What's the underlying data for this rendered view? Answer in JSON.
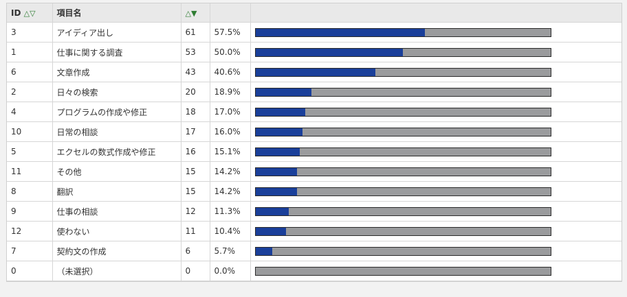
{
  "header": {
    "id_label": "ID",
    "id_sort": "△▽",
    "name_label": "項目名",
    "count_sort_up": "△",
    "count_sort_down": "▼"
  },
  "rows": [
    {
      "id": "3",
      "name": "アイディア出し",
      "count": "61",
      "pct": "57.5%",
      "fraction": 0.575
    },
    {
      "id": "1",
      "name": "仕事に関する調査",
      "count": "53",
      "pct": "50.0%",
      "fraction": 0.5
    },
    {
      "id": "6",
      "name": "文章作成",
      "count": "43",
      "pct": "40.6%",
      "fraction": 0.406
    },
    {
      "id": "2",
      "name": "日々の検索",
      "count": "20",
      "pct": "18.9%",
      "fraction": 0.189
    },
    {
      "id": "4",
      "name": "プログラムの作成や修正",
      "count": "18",
      "pct": "17.0%",
      "fraction": 0.17
    },
    {
      "id": "10",
      "name": "日常の相談",
      "count": "17",
      "pct": "16.0%",
      "fraction": 0.16
    },
    {
      "id": "5",
      "name": "エクセルの数式作成や修正",
      "count": "16",
      "pct": "15.1%",
      "fraction": 0.151
    },
    {
      "id": "11",
      "name": "その他",
      "count": "15",
      "pct": "14.2%",
      "fraction": 0.142
    },
    {
      "id": "8",
      "name": "翻訳",
      "count": "15",
      "pct": "14.2%",
      "fraction": 0.142
    },
    {
      "id": "9",
      "name": "仕事の相談",
      "count": "12",
      "pct": "11.3%",
      "fraction": 0.113
    },
    {
      "id": "12",
      "name": "使わない",
      "count": "11",
      "pct": "10.4%",
      "fraction": 0.104
    },
    {
      "id": "7",
      "name": "契約文の作成",
      "count": "6",
      "pct": "5.7%",
      "fraction": 0.057
    },
    {
      "id": "0",
      "name": "（未選択）",
      "count": "0",
      "pct": "0.0%",
      "fraction": 0.0
    }
  ],
  "colors": {
    "bar_fill": "#1a3f9a",
    "bar_track": "#9a9b9d",
    "sort_arrow": "#2e7d32"
  }
}
